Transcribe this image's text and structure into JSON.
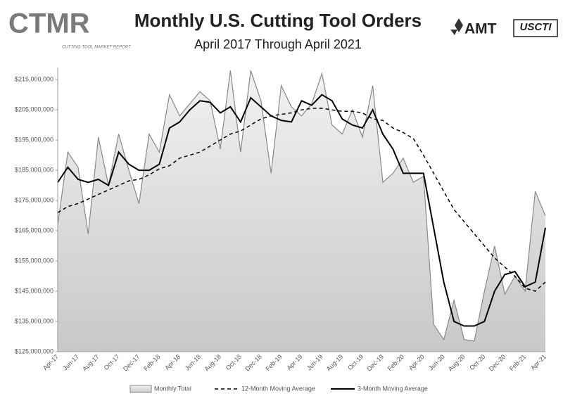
{
  "header": {
    "logo_left": "CTMR",
    "logo_left_sub": "CUTTING TOOL MARKET REPORT",
    "logo_right_1": "AMT",
    "logo_right_2": "USCTI"
  },
  "chart_data": {
    "type": "area-line",
    "title": "Monthly U.S. Cutting Tool Orders",
    "subtitle": "April 2017 Through April 2021",
    "categories": [
      "Apr-17",
      null,
      "Jun-17",
      null,
      "Aug-17",
      null,
      "Oct-17",
      null,
      "Dec-17",
      null,
      "Feb-18",
      null,
      "Apr-18",
      null,
      "Jun-18",
      null,
      "Aug-18",
      null,
      "Oct-18",
      null,
      "Dec-18",
      null,
      "Feb-19",
      null,
      "Apr-19",
      null,
      "Jun-19",
      null,
      "Aug-19",
      null,
      "Oct-19",
      null,
      "Dec-19",
      null,
      "Feb-20",
      null,
      "Apr-20",
      null,
      "Jun-20",
      null,
      "Aug-20",
      null,
      "Oct-20",
      null,
      "Dec-20",
      null,
      "Feb-21",
      null,
      "Apr-21"
    ],
    "series": [
      {
        "name": "Monthly Total",
        "color": "#888888",
        "style": "area",
        "values": [
          167000000,
          191000000,
          186000000,
          164000000,
          196000000,
          180000000,
          197000000,
          185000000,
          174000000,
          197000000,
          191000000,
          210000000,
          203000000,
          207000000,
          211000000,
          208000000,
          192000000,
          218000000,
          191000000,
          218000000,
          208000000,
          184000000,
          213000000,
          206000000,
          203000000,
          207000000,
          217000000,
          200000000,
          197000000,
          205000000,
          196000000,
          213000000,
          181000000,
          184000000,
          189000000,
          181000000,
          183000000,
          134000000,
          129000000,
          142000000,
          129000000,
          128500000,
          145000000,
          160000000,
          144000000,
          150000000,
          145000000,
          178000000,
          170000000
        ]
      },
      {
        "name": "12-Month Moving Average",
        "color": "#000000",
        "style": "dashed",
        "values": [
          171000000,
          173000000,
          174000000,
          175500000,
          177000000,
          178500000,
          180000000,
          181500000,
          182000000,
          183500000,
          185500000,
          186500000,
          189000000,
          190000000,
          191000000,
          193000000,
          195000000,
          197000000,
          198000000,
          200000000,
          202000000,
          203000000,
          203500000,
          204000000,
          205000000,
          205500000,
          205500000,
          205000000,
          204500000,
          204500000,
          204000000,
          202000000,
          201500000,
          199000000,
          197500000,
          195500000,
          190000000,
          184000000,
          178000000,
          172000000,
          168000000,
          164000000,
          160000000,
          156000000,
          153000000,
          150000000,
          146000000,
          145000000,
          148000000
        ]
      },
      {
        "name": "3-Month Moving Average",
        "color": "#000000",
        "style": "solid",
        "values": [
          181000000,
          186000000,
          182000000,
          181000000,
          182000000,
          180000000,
          191000000,
          187000000,
          185000000,
          185000000,
          187000000,
          199000000,
          201000000,
          205000000,
          208000000,
          207500000,
          204000000,
          206000000,
          201000000,
          209000000,
          206000000,
          203000000,
          201500000,
          201000000,
          208000000,
          206500000,
          210000000,
          208000000,
          202000000,
          200000000,
          199000000,
          205000000,
          197000000,
          192000000,
          184000000,
          184000000,
          184000000,
          166000000,
          148000000,
          135000000,
          133500000,
          133500000,
          135000000,
          145000000,
          150500000,
          151500000,
          146500000,
          148000000,
          166000000
        ]
      }
    ],
    "ylim": [
      125000000,
      219000000
    ],
    "yticks": [
      {
        "value": 125000000,
        "label": "$125,000,000"
      },
      {
        "value": 135000000,
        "label": "$135,000,000"
      },
      {
        "value": 145000000,
        "label": "$145,000,000"
      },
      {
        "value": 155000000,
        "label": "$155,000,000"
      },
      {
        "value": 165000000,
        "label": "$165,000,000"
      },
      {
        "value": 175000000,
        "label": "$175,000,000"
      },
      {
        "value": 185000000,
        "label": "$185,000,000"
      },
      {
        "value": 195000000,
        "label": "$195,000,000"
      },
      {
        "value": 205000000,
        "label": "$205,000,000"
      },
      {
        "value": 215000000,
        "label": "$215,000,000"
      }
    ],
    "grid": false,
    "legend": "bottom"
  }
}
